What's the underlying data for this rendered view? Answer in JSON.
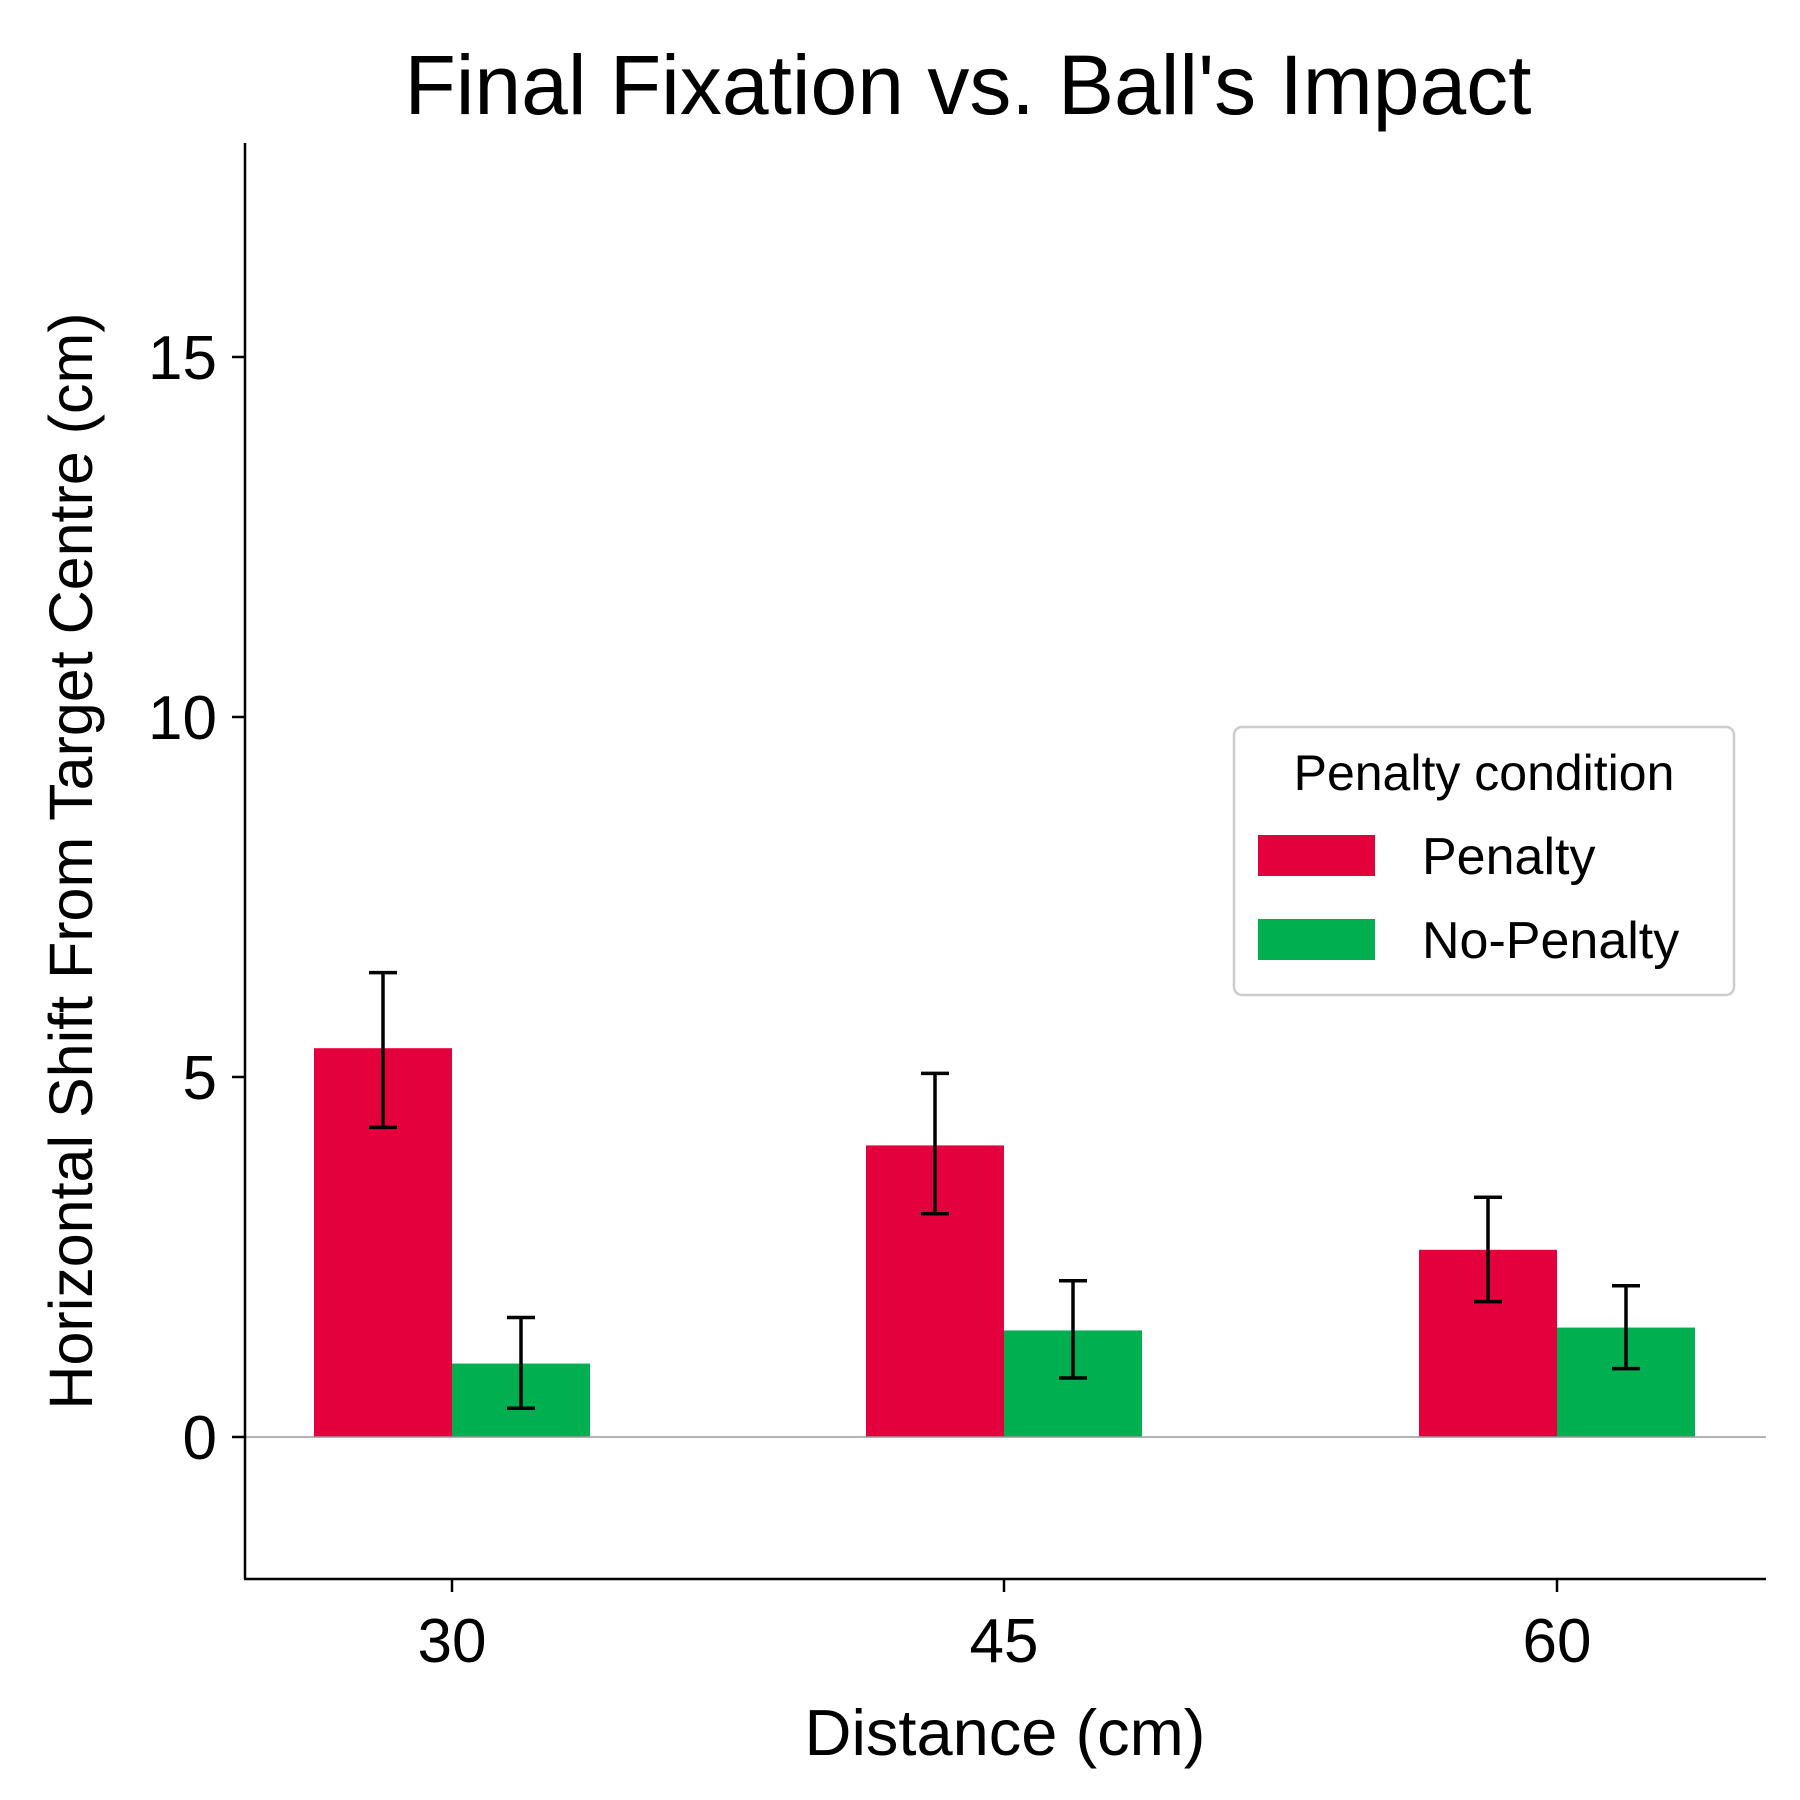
{
  "chart_data": {
    "type": "bar",
    "title": "Final Fixation vs. Ball's Impact",
    "xlabel": "Distance (cm)",
    "ylabel": "Horizontal Shift From Target Centre (cm)",
    "categories": [
      "30",
      "45",
      "60"
    ],
    "ylim": [
      -2,
      18
    ],
    "yticks": [
      0,
      5,
      10,
      15
    ],
    "grid": false,
    "legend": {
      "title": "Penalty condition",
      "placement": "center-right"
    },
    "series": [
      {
        "name": "Penalty",
        "color": "#e3003d",
        "values": [
          5.4,
          4.05,
          2.6
        ],
        "error_low": [
          4.3,
          3.1,
          1.88
        ],
        "error_high": [
          6.45,
          5.05,
          3.33
        ]
      },
      {
        "name": "No-Penalty",
        "color": "#00b050",
        "values": [
          1.02,
          1.48,
          1.52
        ],
        "error_low": [
          0.4,
          0.82,
          0.95
        ],
        "error_high": [
          1.66,
          2.17,
          2.1
        ]
      }
    ]
  }
}
